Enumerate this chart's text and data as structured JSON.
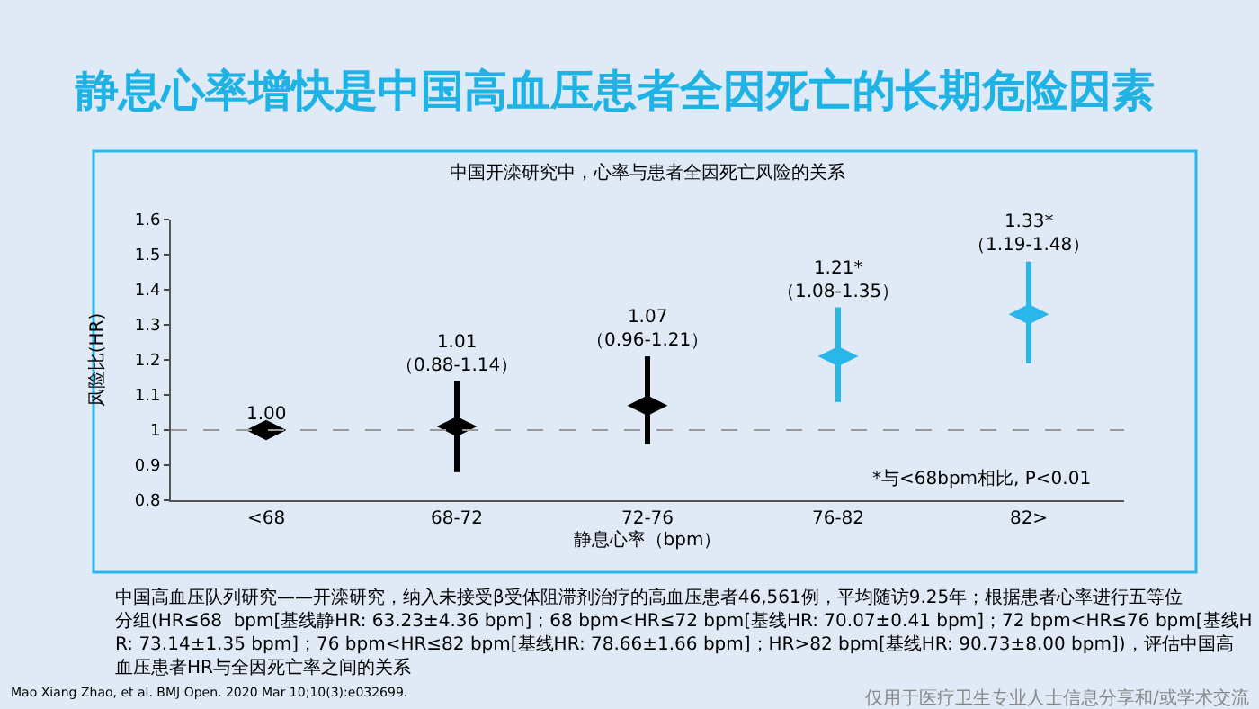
{
  "chart_data": {
    "type": "scatter",
    "title": "静息心率增快是中国高血压患者全因死亡的长期危险因素",
    "subtitle": "中国开滦研究中，心率与患者全因死亡风险的关系",
    "xlabel": "静息心率（bpm）",
    "ylabel": "风险比(HR)",
    "categories": [
      "<68",
      "68-72",
      "72-76",
      "76-82",
      "82>"
    ],
    "values": [
      1.0,
      1.01,
      1.07,
      1.21,
      1.33
    ],
    "errors": [
      null,
      [
        0.88,
        1.14
      ],
      [
        0.96,
        1.21
      ],
      [
        1.08,
        1.35
      ],
      [
        1.19,
        1.48
      ]
    ],
    "colors": [
      "#000000",
      "#000000",
      "#000000",
      "#29b6e8",
      "#29b6e8"
    ],
    "value_labels": [
      "1.00",
      "1.01\n（0.88-1.14）",
      "1.07\n（0.96-1.21）",
      "1.21*\n（1.08-1.35）",
      "1.33*\n（1.19-1.48）"
    ],
    "ylim": [
      0.8,
      1.6
    ],
    "yticks": [
      0.8,
      0.9,
      1,
      1.1,
      1.2,
      1.3,
      1.4,
      1.5,
      1.6
    ],
    "ref_lines": [
      {
        "axis": "y",
        "value": 1,
        "color": "#999999",
        "line_style": "dashed"
      }
    ],
    "grid": false,
    "marker": "diamond",
    "legend": false,
    "annotations": [
      "*与<68bpm相比, P<0.01",
      "中国高血压队列研究——开滦研究，纳入未接受β受体阻滞剂治疗的高血压患者46,561例，平均随访9.25年；根据患者心率进行五等位分组(HR≤68  bpm[基线静HR: 63.23±4.36 bpm]；68 bpm<HR≤72 bpm[基线HR: 70.07±0.41 bpm]；72 bpm<HR≤76 bpm[基线HR: 73.14±1.35 bpm]；76 bpm<HR≤82 bpm[基线HR: 78.66±1.66 bpm]；HR>82 bpm[基线HR: 90.73±8.00 bpm])，评估中国高血压患者HR与全因死亡率之间的关系",
      "Mao Xiang Zhao, et al. BMJ Open. 2020 Mar 10;10(3):e032699.",
      "仅用于医疗卫生专业人士信息分享和/或学术交流"
    ]
  }
}
